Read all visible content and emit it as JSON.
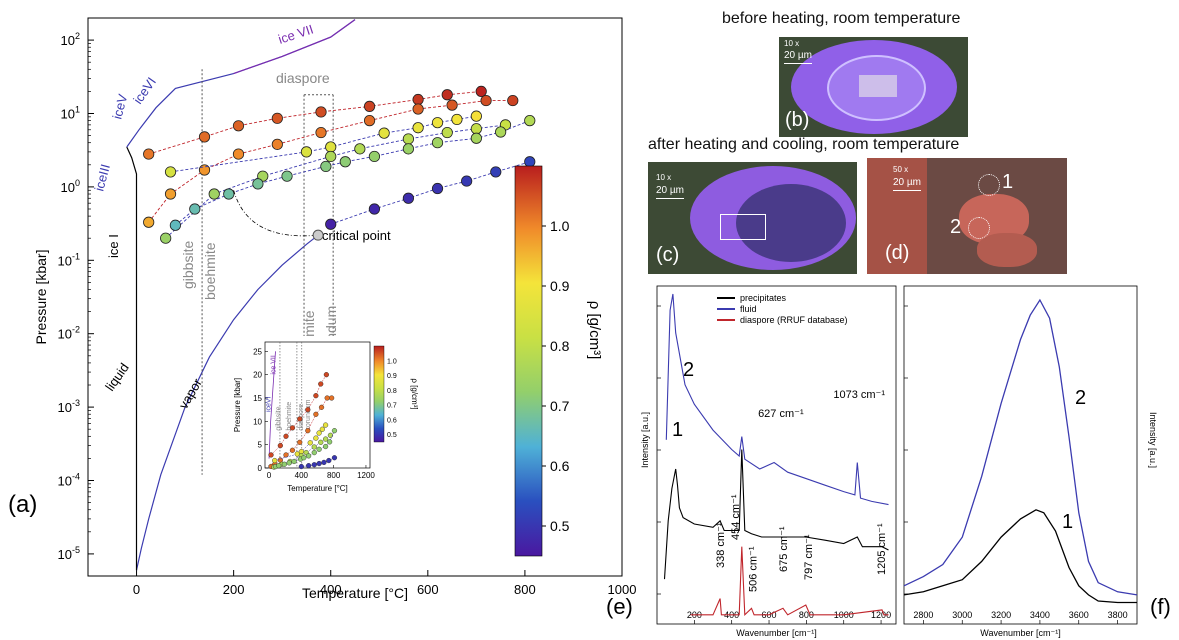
{
  "panel_labels": [
    "(a)",
    "(b)",
    "(c)",
    "(d)",
    "(e)",
    "(f)"
  ],
  "photos": {
    "before_caption": "before heating, room temperature",
    "after_caption": "after heating and cooling, room temperature",
    "b": {
      "mag": "10 x",
      "scale": "20 µm"
    },
    "c": {
      "mag": "10 x",
      "scale": "20 µm"
    },
    "d": {
      "mag": "50 x",
      "scale": "20 µm",
      "spots": [
        "1",
        "2"
      ]
    }
  },
  "chart_data": [
    {
      "id": "a",
      "type": "scatter",
      "xlabel": "Temperature [°C]",
      "ylabel": "Pressure [kbar]",
      "xlim": [
        -100,
        1000
      ],
      "ylim": [
        5e-06,
        200
      ],
      "yscale": "log",
      "xticks": [
        0,
        200,
        400,
        600,
        800,
        1000
      ],
      "yticks": [
        {
          "v": 1e-05,
          "b": "10",
          "e": "-5"
        },
        {
          "v": 0.0001,
          "b": "10",
          "e": "-4"
        },
        {
          "v": 0.001,
          "b": "10",
          "e": "-3"
        },
        {
          "v": 0.01,
          "b": "10",
          "e": "-2"
        },
        {
          "v": 0.1,
          "b": "10",
          "e": "-1"
        },
        {
          "v": 1,
          "b": "10",
          "e": "0"
        },
        {
          "v": 10,
          "b": "10",
          "e": "1"
        },
        {
          "v": 100,
          "b": "10",
          "e": "2"
        }
      ],
      "colorbar": {
        "label": "ρ [g/cm³]",
        "range": [
          0.45,
          1.1
        ],
        "ticks": [
          "0.5",
          "0.6",
          "0.7",
          "0.8",
          "0.9",
          "1.0"
        ],
        "tick_values": [
          0.5,
          0.6,
          0.7,
          0.8,
          0.9,
          1.0
        ]
      },
      "phase_labels": [
        "iceIII",
        "iceV",
        "iceVI",
        "ice VII",
        "ice I",
        "liquid",
        "vapor",
        "critical point"
      ],
      "mineral_labels": [
        "gibbsite",
        "boehmite",
        "diaspore",
        "boehmite",
        "corundum"
      ],
      "boundaries_x": [
        135,
        345,
        405
      ],
      "critical_point": {
        "x": 374,
        "y": 0.22
      },
      "series": [
        {
          "rho": 1.06,
          "x": [
            25,
            140,
            210,
            290,
            380,
            480,
            580,
            640,
            710
          ],
          "y": [
            2.8,
            4.8,
            6.8,
            8.6,
            10.5,
            12.5,
            15.5,
            18,
            20
          ]
        },
        {
          "rho": 1.02,
          "x": [
            25,
            70,
            140,
            210,
            290,
            380,
            480,
            580,
            650,
            720,
            775
          ],
          "y": [
            0.33,
            0.8,
            1.7,
            2.8,
            3.8,
            5.5,
            8,
            11.5,
            13,
            15,
            15
          ]
        },
        {
          "rho": 0.88,
          "x": [
            70,
            350,
            400,
            510,
            580,
            620,
            660,
            700
          ],
          "y": [
            1.6,
            3,
            3.5,
            5.4,
            6.4,
            7.5,
            8.3,
            9.2
          ]
        },
        {
          "rho": 0.78,
          "x": [
            60,
            160,
            260,
            400,
            460,
            560,
            640,
            700,
            760
          ],
          "y": [
            0.2,
            0.8,
            1.4,
            2.6,
            3.3,
            4.5,
            5.5,
            6.2,
            7
          ]
        },
        {
          "rho": 0.72,
          "x": [
            80,
            120,
            190,
            250,
            310,
            390,
            430,
            490,
            560,
            620,
            700,
            750,
            810
          ],
          "y": [
            0.3,
            0.5,
            0.8,
            1.1,
            1.4,
            1.9,
            2.2,
            2.6,
            3.3,
            4,
            4.6,
            5.6,
            8
          ]
        },
        {
          "rho": 0.5,
          "x": [
            400,
            490,
            560,
            620,
            680,
            740,
            810
          ],
          "y": [
            0.31,
            0.5,
            0.7,
            0.95,
            1.2,
            1.6,
            2.2
          ]
        }
      ],
      "inset": {
        "xlabel": "Temperature [°C]",
        "ylabel": "Pressure [kbar]",
        "xticks": [
          0,
          400,
          800,
          1200
        ],
        "yticks": [
          0,
          5,
          10,
          15,
          20,
          25
        ],
        "xlim": [
          -50,
          1250
        ],
        "ylim": [
          0,
          27
        ],
        "phase_labels": [
          "iceVI",
          "ice VII"
        ],
        "mineral_labels": [
          "gibbsite",
          "boehmite",
          "diaspore",
          "corundum"
        ],
        "colorbar_label": "ρ [g/cm³]",
        "colorbar_ticks": [
          "0.5",
          "0.6",
          "0.7",
          "0.8",
          "0.9",
          "1.0"
        ]
      }
    },
    {
      "id": "e",
      "type": "line",
      "xlabel": "Wavenumber [cm⁻¹]",
      "ylabel": "Intensity [a.u.]",
      "xlim": [
        0,
        1280
      ],
      "xticks": [
        200,
        400,
        600,
        800,
        1000,
        1200
      ],
      "legend": [
        "precipitates",
        "fluid",
        "diaspore (RRUF database)"
      ],
      "curve_labels": [
        "2",
        "1"
      ],
      "peak_labels": [
        {
          "x": 338,
          "text": "338 cm⁻¹"
        },
        {
          "x": 454,
          "text": "454 cm⁻¹"
        },
        {
          "x": 506,
          "text": "506 cm⁻¹"
        },
        {
          "x": 675,
          "text": "675 cm⁻¹"
        },
        {
          "x": 797,
          "text": "797 cm⁻¹"
        },
        {
          "x": 1205,
          "text": "1205 cm⁻¹"
        },
        {
          "x": 627,
          "text": "627 cm⁻¹"
        },
        {
          "x": 1073,
          "text": "1073 cm⁻¹"
        }
      ],
      "series": [
        {
          "name": "fluid",
          "color": "#3b3bb0",
          "x": [
            50,
            70,
            85,
            100,
            150,
            200,
            300,
            400,
            440,
            454,
            470,
            550,
            627,
            700,
            800,
            900,
            1000,
            1060,
            1073,
            1090,
            1150,
            1240
          ],
          "y": [
            0.55,
            0.95,
            1.0,
            0.88,
            0.72,
            0.66,
            0.58,
            0.52,
            0.5,
            0.56,
            0.49,
            0.46,
            0.48,
            0.45,
            0.43,
            0.41,
            0.39,
            0.38,
            0.48,
            0.37,
            0.36,
            0.35
          ]
        },
        {
          "name": "precipitates",
          "color": "#000000",
          "x": [
            40,
            60,
            80,
            90,
            100,
            110,
            120,
            140,
            200,
            300,
            338,
            360,
            440,
            454,
            470,
            506,
            560,
            675,
            797,
            900,
            1000,
            1073,
            1100,
            1205,
            1240
          ],
          "y": [
            0.12,
            0.3,
            0.4,
            0.43,
            0.46,
            0.41,
            0.34,
            0.31,
            0.29,
            0.28,
            0.3,
            0.27,
            0.27,
            0.52,
            0.27,
            0.26,
            0.25,
            0.25,
            0.25,
            0.24,
            0.23,
            0.25,
            0.22,
            0.22,
            0.21
          ]
        },
        {
          "name": "diaspore (RRUF database)",
          "color": "#c0262c",
          "x": [
            180,
            300,
            338,
            345,
            440,
            454,
            470,
            506,
            520,
            600,
            675,
            700,
            797,
            820,
            1000,
            1205,
            1215,
            1240
          ],
          "y": [
            0.01,
            0.01,
            0.06,
            0.01,
            0.01,
            0.22,
            0.01,
            0.03,
            0.01,
            0.01,
            0.03,
            0.01,
            0.04,
            0.01,
            0.01,
            0.025,
            0.01,
            0.01
          ]
        }
      ]
    },
    {
      "id": "f",
      "type": "line",
      "xlabel": "Wavenumber [cm⁻¹]",
      "ylabel": "Intensity [a.u.]",
      "xlim": [
        2700,
        3900
      ],
      "xticks": [
        2800,
        3000,
        3200,
        3400,
        3600,
        3800
      ],
      "curve_labels": [
        "2",
        "1"
      ],
      "series": [
        {
          "name": "fluid",
          "color": "#3b3bb0",
          "x": [
            2700,
            2800,
            2900,
            3000,
            3100,
            3200,
            3300,
            3350,
            3400,
            3450,
            3500,
            3550,
            3600,
            3650,
            3700,
            3800,
            3900
          ],
          "y": [
            0.06,
            0.09,
            0.13,
            0.22,
            0.42,
            0.66,
            0.87,
            0.95,
            1.0,
            0.94,
            0.78,
            0.55,
            0.3,
            0.14,
            0.07,
            0.04,
            0.03
          ]
        },
        {
          "name": "precipitates",
          "color": "#000000",
          "x": [
            2700,
            2800,
            2900,
            3000,
            3100,
            3200,
            3300,
            3380,
            3420,
            3480,
            3550,
            3600,
            3650,
            3700,
            3800,
            3900
          ],
          "y": [
            0.03,
            0.04,
            0.06,
            0.08,
            0.14,
            0.22,
            0.28,
            0.31,
            0.3,
            0.24,
            0.12,
            0.06,
            0.03,
            0.01,
            0.005,
            0.005
          ]
        }
      ]
    }
  ]
}
